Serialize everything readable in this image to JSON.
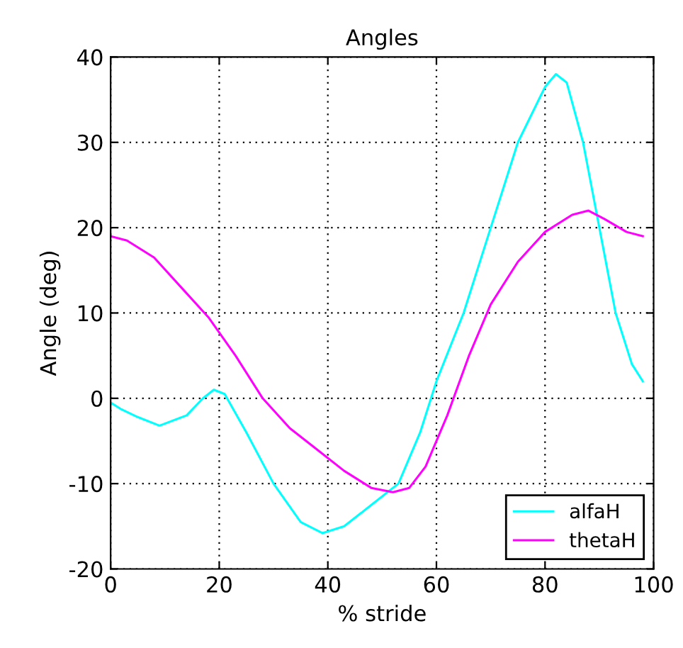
{
  "chart_data": {
    "type": "line",
    "title": "Angles",
    "xlabel": "% stride",
    "ylabel": "Angle (deg)",
    "xlim": [
      0,
      100
    ],
    "xticks": [
      0,
      20,
      40,
      60,
      80,
      100
    ],
    "ylim": [
      -20,
      40
    ],
    "yticks": [
      -20,
      -10,
      0,
      10,
      20,
      30,
      40
    ],
    "grid": true,
    "legend": "bottom right",
    "line_style": "solid",
    "series": [
      {
        "name": "alfaH",
        "color": "#00ffff",
        "x": [
          0,
          2,
          5,
          9,
          14,
          17,
          19,
          21,
          25,
          30,
          35,
          39,
          43,
          48,
          53,
          57,
          60,
          65,
          70,
          75,
          80,
          82,
          84,
          87,
          90,
          93,
          96,
          98
        ],
        "values": [
          -0.5,
          -1.3,
          -2.2,
          -3.2,
          -2,
          0,
          1,
          0.5,
          -4,
          -10,
          -14.5,
          -15.8,
          -15,
          -12.5,
          -10,
          -4,
          2,
          10,
          20,
          30,
          36.5,
          38,
          37,
          30,
          20,
          10,
          4,
          2
        ]
      },
      {
        "name": "thetaH",
        "color": "#ff00ff",
        "x": [
          0,
          3,
          8,
          13,
          18,
          23,
          28,
          33,
          38,
          43,
          48,
          52,
          55,
          58,
          62,
          66,
          70,
          75,
          80,
          85,
          88,
          91,
          95,
          98
        ],
        "values": [
          19,
          18.5,
          16.5,
          13,
          9.5,
          5,
          0,
          -3.5,
          -6,
          -8.5,
          -10.5,
          -11,
          -10.5,
          -8,
          -2,
          5,
          11,
          16,
          19.5,
          21.5,
          22,
          21,
          19.5,
          19
        ]
      }
    ]
  }
}
